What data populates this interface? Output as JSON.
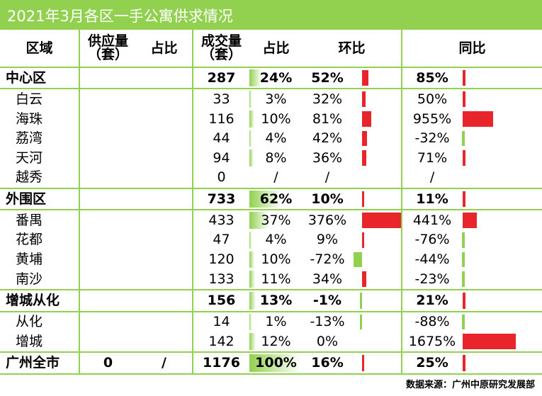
{
  "title": "2021年3月各区一手公寓供求情况",
  "headers": {
    "region": "区域",
    "supply_main": "供应量",
    "supply_unit": "（套）",
    "supply_share": "占比",
    "deal_main": "成交量",
    "deal_unit": "（套）",
    "deal_share": "占比",
    "mom": "环比",
    "yoy": "同比"
  },
  "rows": [
    {
      "region": "中心区",
      "supply": "",
      "supply_share": "",
      "deals": "287",
      "share": "24%",
      "share_value": 24,
      "mom": "52%",
      "mom_value": 52,
      "yoy": "85%",
      "yoy_value": 85,
      "bold": true
    },
    {
      "region": "白云",
      "supply": "",
      "supply_share": "",
      "deals": "33",
      "share": "3%",
      "share_value": 3,
      "mom": "32%",
      "mom_value": 32,
      "yoy": "50%",
      "yoy_value": 50,
      "bold": false
    },
    {
      "region": "海珠",
      "supply": "",
      "supply_share": "",
      "deals": "116",
      "share": "10%",
      "share_value": 10,
      "mom": "81%",
      "mom_value": 81,
      "yoy": "955%",
      "yoy_value": 955,
      "bold": false
    },
    {
      "region": "荔湾",
      "supply": "",
      "supply_share": "",
      "deals": "44",
      "share": "4%",
      "share_value": 4,
      "mom": "42%",
      "mom_value": 42,
      "yoy": "-32%",
      "yoy_value": -32,
      "bold": false
    },
    {
      "region": "天河",
      "supply": "",
      "supply_share": "",
      "deals": "94",
      "share": "8%",
      "share_value": 8,
      "mom": "36%",
      "mom_value": 36,
      "yoy": "71%",
      "yoy_value": 71,
      "bold": false
    },
    {
      "region": "越秀",
      "supply": "",
      "supply_share": "",
      "deals": "0",
      "share": "/",
      "share_value": null,
      "mom": "/",
      "mom_value": null,
      "yoy": "/",
      "yoy_value": null,
      "bold": false
    },
    {
      "region": "外围区",
      "supply": "",
      "supply_share": "",
      "deals": "733",
      "share": "62%",
      "share_value": 62,
      "mom": "10%",
      "mom_value": 10,
      "yoy": "11%",
      "yoy_value": 11,
      "bold": true
    },
    {
      "region": "番禺",
      "supply": "",
      "supply_share": "",
      "deals": "433",
      "share": "37%",
      "share_value": 37,
      "mom": "376%",
      "mom_value": 376,
      "yoy": "441%",
      "yoy_value": 441,
      "bold": false
    },
    {
      "region": "花都",
      "supply": "",
      "supply_share": "",
      "deals": "47",
      "share": "4%",
      "share_value": 4,
      "mom": "9%",
      "mom_value": 9,
      "yoy": "-76%",
      "yoy_value": -76,
      "bold": false
    },
    {
      "region": "黄埔",
      "supply": "",
      "supply_share": "",
      "deals": "120",
      "share": "10%",
      "share_value": 10,
      "mom": "-72%",
      "mom_value": -72,
      "yoy": "-44%",
      "yoy_value": -44,
      "bold": false
    },
    {
      "region": "南沙",
      "supply": "",
      "supply_share": "",
      "deals": "133",
      "share": "11%",
      "share_value": 11,
      "mom": "34%",
      "mom_value": 34,
      "yoy": "-23%",
      "yoy_value": -23,
      "bold": false
    },
    {
      "region": "增城从化",
      "supply": "",
      "supply_share": "",
      "deals": "156",
      "share": "13%",
      "share_value": 13,
      "mom": "-1%",
      "mom_value": -1,
      "yoy": "21%",
      "yoy_value": 21,
      "bold": true
    },
    {
      "region": "从化",
      "supply": "",
      "supply_share": "",
      "deals": "14",
      "share": "1%",
      "share_value": 1,
      "mom": "-13%",
      "mom_value": -13,
      "yoy": "-88%",
      "yoy_value": -88,
      "bold": false
    },
    {
      "region": "增城",
      "supply": "",
      "supply_share": "",
      "deals": "142",
      "share": "12%",
      "share_value": 12,
      "mom": "0%",
      "mom_value": 0,
      "yoy": "1675%",
      "yoy_value": 1675,
      "bold": false
    },
    {
      "region": "广州全市",
      "supply": "0",
      "supply_share": "/",
      "deals": "1176",
      "share": "100%",
      "share_value": 100,
      "mom": "16%",
      "mom_value": 16,
      "yoy": "25%",
      "yoy_value": 25,
      "bold": true
    }
  ],
  "source": "数据来源：广州中原研究发展部",
  "colors": {
    "accent": "#92d050",
    "positive_bar": "#e8252a",
    "negative_bar": "#92d050"
  }
}
